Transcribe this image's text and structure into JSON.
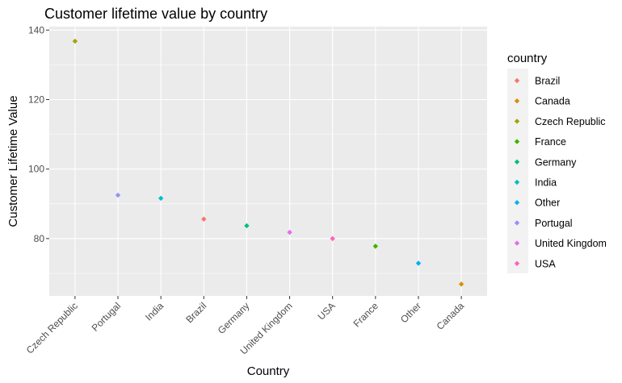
{
  "chart_data": {
    "type": "scatter",
    "title": "Customer lifetime value by country",
    "xlabel": "Country",
    "ylabel": "Customer Lifetime Value",
    "ylim": [
      63.5,
      141
    ],
    "y_ticks": [
      80,
      100,
      120,
      140
    ],
    "categories": [
      "Czech Republic",
      "Portugal",
      "India",
      "Brazil",
      "Germany",
      "United Kingdom",
      "USA",
      "France",
      "Other",
      "Canada"
    ],
    "values": [
      136.8,
      92.5,
      91.6,
      85.6,
      83.7,
      81.8,
      80.0,
      77.8,
      72.9,
      66.9
    ],
    "grid": true,
    "legend": {
      "title": "country",
      "placement": "right",
      "entries": [
        "Brazil",
        "Canada",
        "Czech Republic",
        "France",
        "Germany",
        "India",
        "Other",
        "Portugal",
        "United Kingdom",
        "USA"
      ]
    },
    "colors": {
      "Brazil": "#F8766D",
      "Canada": "#D89000",
      "Czech Republic": "#A3A500",
      "France": "#39B600",
      "Germany": "#00BF7D",
      "India": "#00BFC4",
      "Other": "#00B0F6",
      "Portugal": "#9590FF",
      "United Kingdom": "#E76BF3",
      "USA": "#FF62BC"
    },
    "panel_background": "#EBEBEB",
    "grid_color": "#FFFFFF"
  }
}
